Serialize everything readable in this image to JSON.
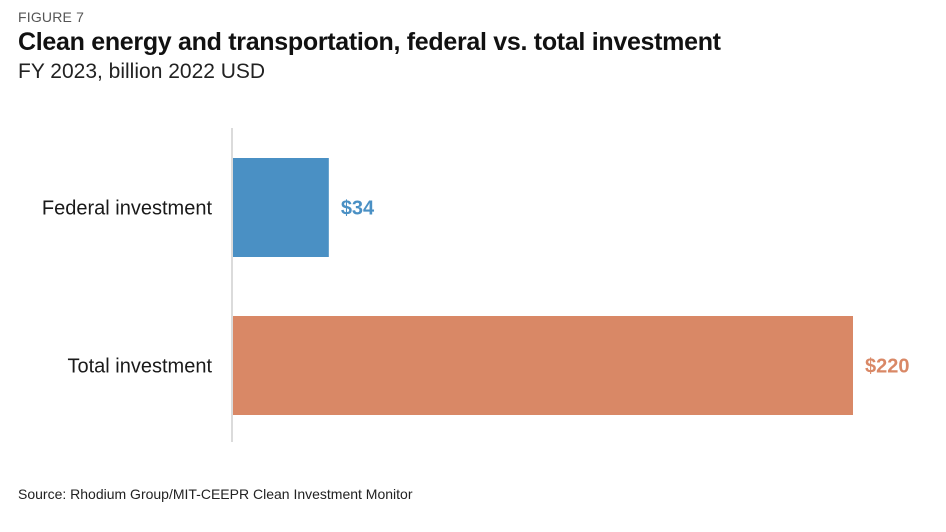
{
  "figure_label": "FIGURE 7",
  "source": "Source: Rhodium Group/MIT-CEEPR Clean Investment Monitor",
  "chart_data": {
    "type": "bar",
    "orientation": "horizontal",
    "title": "Clean energy and transportation, federal vs. total investment",
    "subtitle": "FY 2023, billion 2022 USD",
    "categories": [
      "Federal investment",
      "Total investment"
    ],
    "values": [
      34,
      220
    ],
    "value_labels": [
      "$34",
      "$220"
    ],
    "colors": [
      "#4a90c4",
      "#d98866"
    ],
    "xlim": [
      0,
      220
    ],
    "grid": false,
    "legend": "none"
  }
}
